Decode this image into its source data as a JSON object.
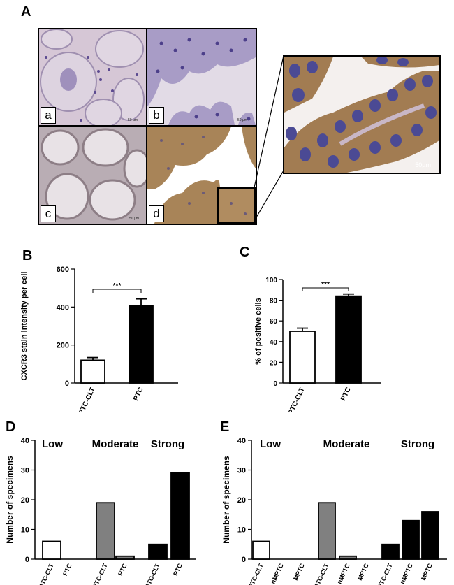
{
  "panel_letters": {
    "A": "A",
    "B": "B",
    "C": "C",
    "D": "D",
    "E": "E"
  },
  "micrographs": {
    "a": {
      "label": "a",
      "scale": "50 µm"
    },
    "b": {
      "label": "b",
      "scale": "50 µm"
    },
    "c": {
      "label": "c",
      "scale": "50 µm"
    },
    "d": {
      "label": "d"
    },
    "zoom": {
      "scale": "50µm"
    }
  },
  "chart_data": [
    {
      "id": "B",
      "type": "bar",
      "categories": [
        "PTC-CLT",
        "PTC"
      ],
      "values": [
        120,
        408
      ],
      "errors": [
        14,
        35
      ],
      "fills": [
        "#ffffff",
        "#000000"
      ],
      "ylabel": "CXCR3 stain intensity per cell",
      "ylim": [
        0,
        600
      ],
      "yticks": [
        0,
        200,
        400,
        600
      ],
      "significance": "***"
    },
    {
      "id": "C",
      "type": "bar",
      "categories": [
        "PTC-CLT",
        "PTC"
      ],
      "values": [
        50,
        84
      ],
      "errors": [
        3,
        2
      ],
      "fills": [
        "#ffffff",
        "#000000"
      ],
      "ylabel": "% of positive cells",
      "ylim": [
        0,
        100
      ],
      "yticks": [
        0,
        20,
        40,
        60,
        80,
        100
      ],
      "significance": "***"
    },
    {
      "id": "D",
      "type": "bar",
      "groups": [
        "Low",
        "Moderate",
        "Strong"
      ],
      "categories": [
        "PTC-CLT",
        "PTC",
        "PTC-CLT",
        "PTC",
        "PTC-CLT",
        "PTC"
      ],
      "values": [
        6,
        0,
        19,
        1,
        5,
        29
      ],
      "fills": [
        "#ffffff",
        "#ffffff",
        "#808080",
        "#808080",
        "#000000",
        "#000000"
      ],
      "ylabel": "Number of specimens",
      "ylim": [
        0,
        40
      ],
      "yticks": [
        0,
        10,
        20,
        30,
        40
      ]
    },
    {
      "id": "E",
      "type": "bar",
      "groups": [
        "Low",
        "Moderate",
        "Strong"
      ],
      "categories": [
        "PTC-CLT",
        "nMPTC",
        "MPTC",
        "PTC-CLT",
        "nMPTC",
        "MPTC",
        "PTC-CLT",
        "nMPTC",
        "MPTC"
      ],
      "values": [
        6,
        0,
        0,
        19,
        1,
        0,
        5,
        13,
        16
      ],
      "fills": [
        "#ffffff",
        "#ffffff",
        "#ffffff",
        "#808080",
        "#808080",
        "#808080",
        "#000000",
        "#000000",
        "#000000"
      ],
      "ylabel": "Number of specimens",
      "ylim": [
        0,
        40
      ],
      "yticks": [
        0,
        10,
        20,
        30,
        40
      ]
    }
  ]
}
